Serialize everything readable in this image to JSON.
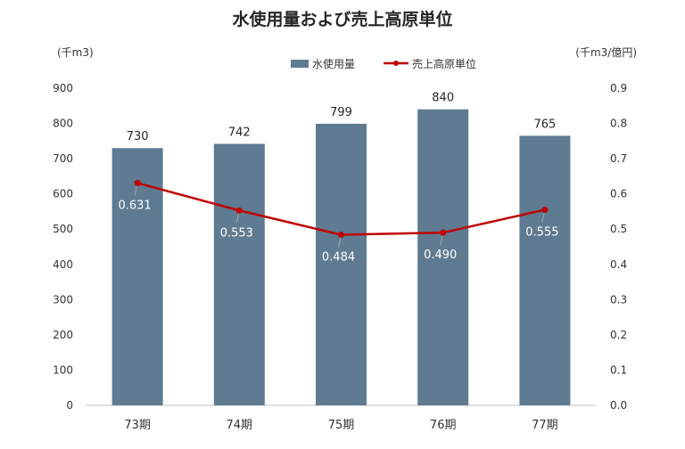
{
  "chart_data": {
    "type": "bar",
    "title": "水使用量および売上高原単位",
    "left_axis_unit": "(千m3)",
    "right_axis_unit": "(千m3/億円)",
    "categories": [
      "73期",
      "74期",
      "75期",
      "76期",
      "77期"
    ],
    "series": [
      {
        "name": "水使用量",
        "type": "bar",
        "axis": "left",
        "color": "#5e7b92",
        "values": [
          730,
          742,
          799,
          840,
          765
        ],
        "labels": [
          "730",
          "742",
          "799",
          "840",
          "765"
        ]
      },
      {
        "name": "売上高原単位",
        "type": "line",
        "axis": "right",
        "color": "#c00000",
        "values": [
          0.631,
          0.553,
          0.484,
          0.49,
          0.555
        ],
        "labels": [
          "0.631",
          "0.553",
          "0.484",
          "0.490",
          "0.555"
        ]
      }
    ],
    "ylim_left": [
      0,
      900
    ],
    "yticks_left": [
      "0",
      "100",
      "200",
      "300",
      "400",
      "500",
      "600",
      "700",
      "800",
      "900"
    ],
    "ylim_right": [
      0,
      0.9
    ],
    "yticks_right": [
      "0.0",
      "0.1",
      "0.2",
      "0.3",
      "0.4",
      "0.5",
      "0.6",
      "0.7",
      "0.8",
      "0.9"
    ],
    "legend_position": "top-center",
    "grid": false
  }
}
